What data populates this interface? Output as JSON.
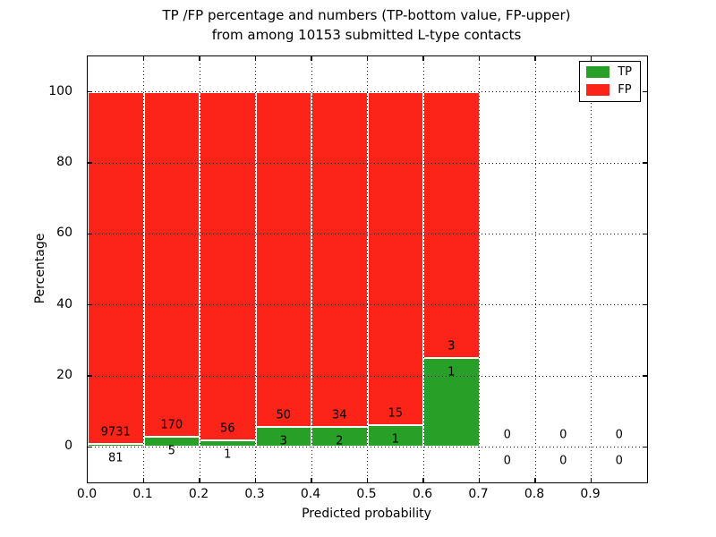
{
  "title": {
    "line1": "TP /FP percentage and numbers (TP-bottom value, FP-upper)",
    "line2": "from among 10153 submitted L-type contacts"
  },
  "axes": {
    "xlabel": "Predicted probability",
    "ylabel": "Percentage",
    "xtick_labels": [
      "0.0",
      "0.1",
      "0.2",
      "0.3",
      "0.4",
      "0.5",
      "0.6",
      "0.7",
      "0.8",
      "0.9"
    ],
    "ytick_labels": [
      "0",
      "20",
      "40",
      "60",
      "80",
      "100"
    ],
    "ytick_values": [
      0,
      20,
      40,
      60,
      80,
      100
    ],
    "xlim": [
      0.0,
      1.0
    ],
    "ylim": [
      -10,
      110
    ],
    "grid": "dotted"
  },
  "legend": {
    "position": "upper right",
    "entries": [
      {
        "label": "TP",
        "color": "#28a028"
      },
      {
        "label": "FP",
        "color": "#fc2318"
      }
    ]
  },
  "chart_data": {
    "type": "bar",
    "subtype": "stacked-percentage",
    "bin_width": 0.1,
    "bin_starts": [
      0.0,
      0.1,
      0.2,
      0.3,
      0.4,
      0.5,
      0.6,
      0.7,
      0.8,
      0.9
    ],
    "series": [
      {
        "name": "TP",
        "color": "#28a028",
        "values": [
          81,
          5,
          1,
          3,
          2,
          1,
          1,
          0,
          0,
          0
        ]
      },
      {
        "name": "FP",
        "color": "#fc2318",
        "values": [
          9731,
          170,
          56,
          50,
          34,
          15,
          3,
          0,
          0,
          0
        ]
      },
      {
        "name": "TP_percent_of_bin",
        "values": [
          0.83,
          2.86,
          1.75,
          5.66,
          5.56,
          6.25,
          25.0,
          0,
          0,
          0
        ]
      }
    ],
    "total_contacts": 10153,
    "title": "TP /FP percentage and numbers (TP-bottom value, FP-upper) from among 10153 submitted L-type contacts",
    "xlabel": "Predicted probability",
    "ylabel": "Percentage",
    "note": "Each occupied bin is drawn as a full-height 100% stacked bar: TP fraction (green) at bottom, FP fraction (red) above. Numeric labels show raw counts: FP count above the TP/FP boundary, TP count below it."
  }
}
